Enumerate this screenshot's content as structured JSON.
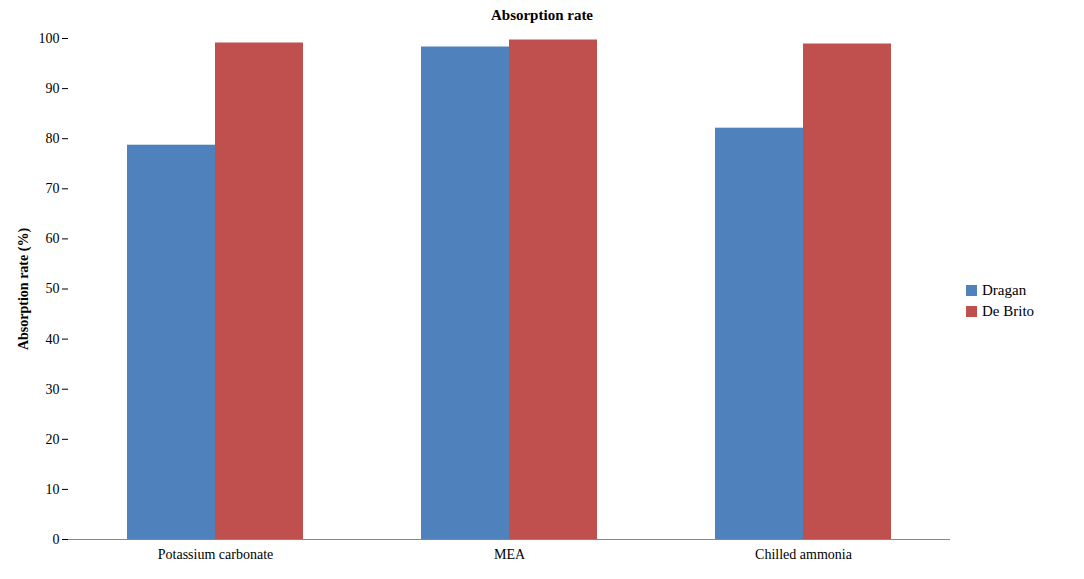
{
  "chart_data": {
    "type": "bar",
    "title": "Absorption rate",
    "y_label": "Absorption rate (%)",
    "categories": [
      "Potassium carbonate",
      "MEA",
      "Chilled ammonia"
    ],
    "series": [
      {
        "name": "Dragan",
        "color": "#4f81bd",
        "values": [
          78.7,
          98.3,
          82.1
        ]
      },
      {
        "name": "De Brito",
        "color": "#c0504d",
        "values": [
          99.1,
          99.7,
          98.9
        ]
      }
    ],
    "ylim": [
      0,
      100
    ],
    "yticks": [
      0,
      10,
      20,
      30,
      40,
      50,
      60,
      70,
      80,
      90,
      100
    ],
    "grid": false,
    "legend": "right"
  }
}
